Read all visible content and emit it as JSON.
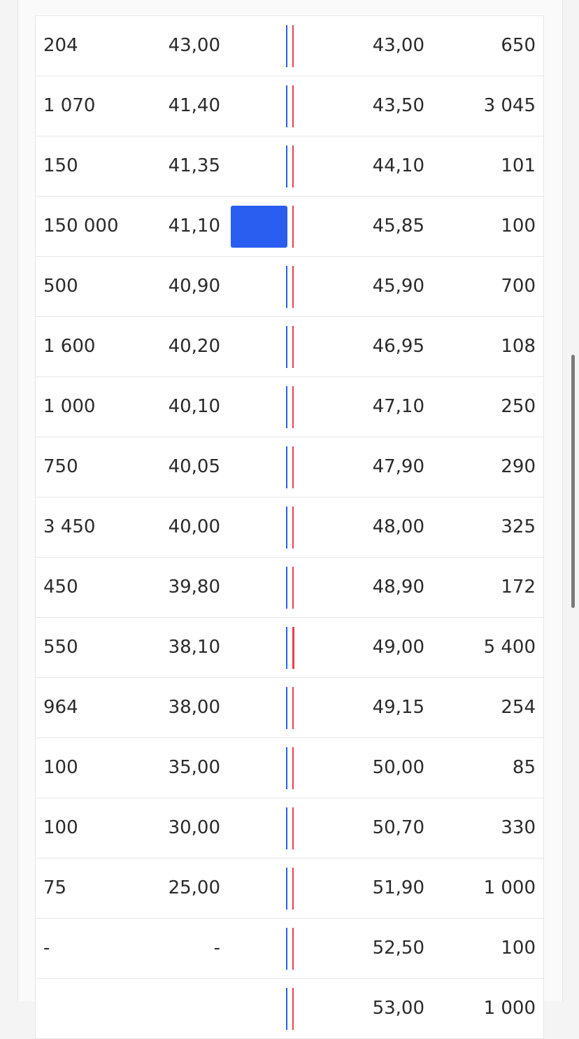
{
  "order_book": {
    "rows": [
      [
        "204",
        "43,00",
        "43,00",
        "650"
      ],
      [
        "1 070",
        "41,40",
        "43,50",
        "3 045"
      ],
      [
        "150",
        "41,35",
        "44,10",
        "101"
      ],
      [
        "150 000",
        "41,10",
        "45,85",
        "100"
      ],
      [
        "500",
        "40,90",
        "45,90",
        "700"
      ],
      [
        "1 600",
        "40,20",
        "46,95",
        "108"
      ],
      [
        "1 000",
        "40,10",
        "47,10",
        "250"
      ],
      [
        "750",
        "40,05",
        "47,90",
        "290"
      ],
      [
        "3 450",
        "40,00",
        "48,00",
        "325"
      ],
      [
        "450",
        "39,80",
        "48,90",
        "172"
      ],
      [
        "550",
        "38,10",
        "49,00",
        "5 400"
      ],
      [
        "964",
        "38,00",
        "49,15",
        "254"
      ],
      [
        "100",
        "35,00",
        "50,00",
        "85"
      ],
      [
        "100",
        "30,00",
        "50,70",
        "330"
      ],
      [
        "75",
        "25,00",
        "51,90",
        "1 000"
      ],
      [
        "-",
        "-",
        "52,50",
        "100"
      ],
      [
        "",
        "",
        "53,00",
        "1 000"
      ]
    ]
  }
}
